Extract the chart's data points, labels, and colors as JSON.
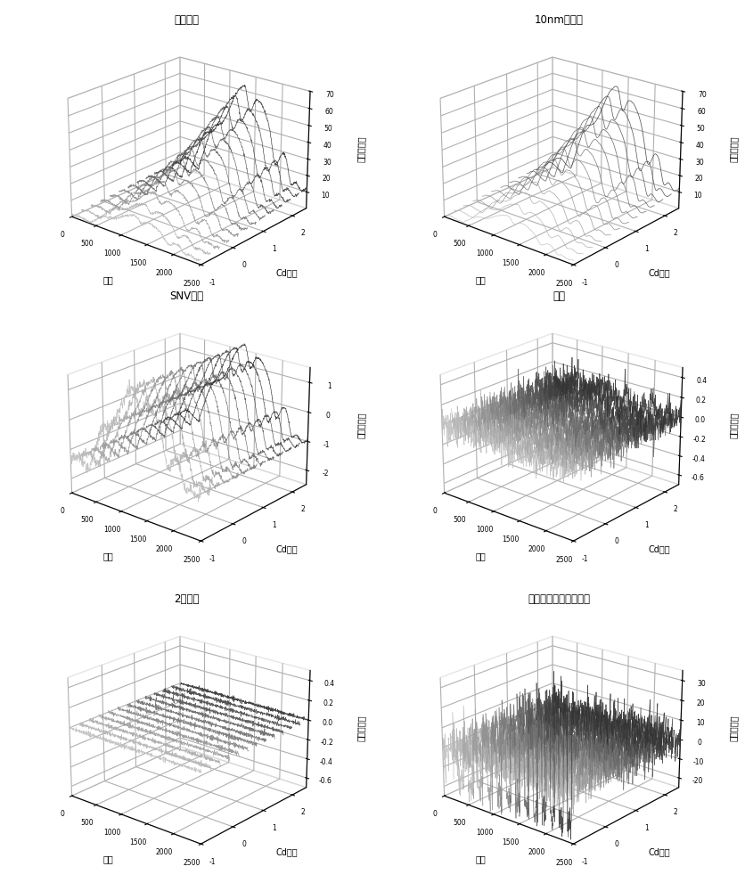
{
  "titles": [
    "原始光谱",
    "10nm重采样",
    "SNV处理",
    "微分",
    "2阶微分",
    "与标准样本的光谱比值"
  ],
  "xlabel": "Cd含量",
  "ylabel": "波长",
  "zlabel": "光谱反射率",
  "plot_configs": [
    {
      "zlim": [
        0,
        70
      ],
      "zticks": [
        10,
        20,
        30,
        40,
        50,
        60,
        70
      ]
    },
    {
      "zlim": [
        0,
        70
      ],
      "zticks": [
        10,
        20,
        30,
        40,
        50,
        60,
        70
      ]
    },
    {
      "zlim": [
        -2.5,
        1.5
      ],
      "zticks": [
        -2,
        -1,
        0,
        1
      ]
    },
    {
      "zlim": [
        -0.7,
        0.5
      ],
      "zticks": [
        -0.6,
        -0.4,
        -0.2,
        0,
        0.2,
        0.4
      ]
    },
    {
      "zlim": [
        -0.7,
        0.5
      ],
      "zticks": [
        -0.6,
        -0.4,
        -0.2,
        0,
        0.2,
        0.4
      ]
    },
    {
      "zlim": [
        -25,
        35
      ],
      "zticks": [
        -20,
        -10,
        0,
        10,
        20,
        30
      ]
    }
  ],
  "background_color": "#ffffff",
  "n_curves": 13,
  "cd_min": -1,
  "cd_max": 2.5,
  "wl_min": 0,
  "wl_max": 2500,
  "n_wl": 500,
  "elev": 22,
  "azim": -50
}
